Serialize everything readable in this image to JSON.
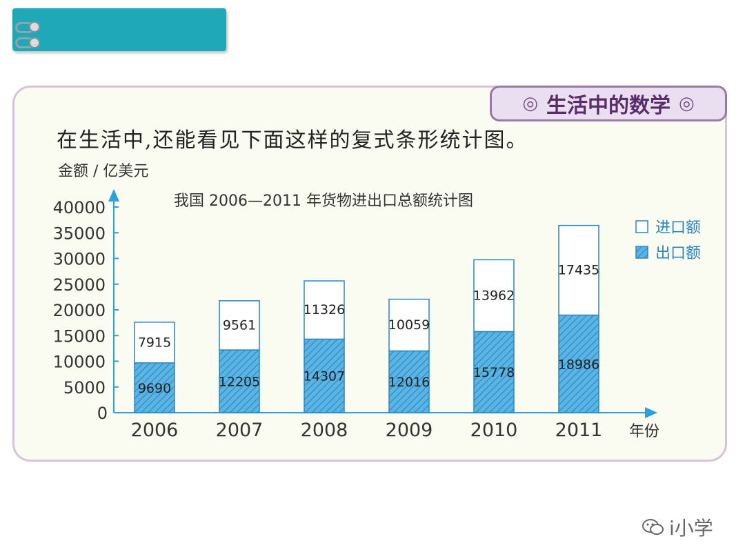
{
  "section_badge": {
    "title": "生活中的数学",
    "mark_left": "◎",
    "mark_right": "◎"
  },
  "intro_text": "在生活中,还能看见下面这样的复式条形统计图。",
  "watermark": {
    "text": "i小学",
    "icon": "wechat-icon"
  },
  "chart_data": {
    "type": "bar",
    "stacked": true,
    "title": "我国 2006—2011 年货物进出口总额统计图",
    "ylabel": "金额 / 亿美元",
    "xlabel": "年份",
    "categories": [
      "2006",
      "2007",
      "2008",
      "2009",
      "2010",
      "2011"
    ],
    "yticks": [
      0,
      5000,
      10000,
      15000,
      20000,
      25000,
      30000,
      35000,
      40000
    ],
    "ylim": [
      0,
      40000
    ],
    "legend_position": "top-right",
    "series": [
      {
        "name": "出口额",
        "values": [
          9690,
          12205,
          14307,
          12016,
          15778,
          18986
        ],
        "color": "#5ab4e4",
        "pattern": "hatched"
      },
      {
        "name": "进口额",
        "values": [
          7915,
          9561,
          11326,
          10059,
          13962,
          17435
        ],
        "color": "#ffffff",
        "pattern": "plain"
      }
    ],
    "legend": [
      {
        "label": "进口额",
        "series": 1
      },
      {
        "label": "出口额",
        "series": 0
      }
    ]
  }
}
